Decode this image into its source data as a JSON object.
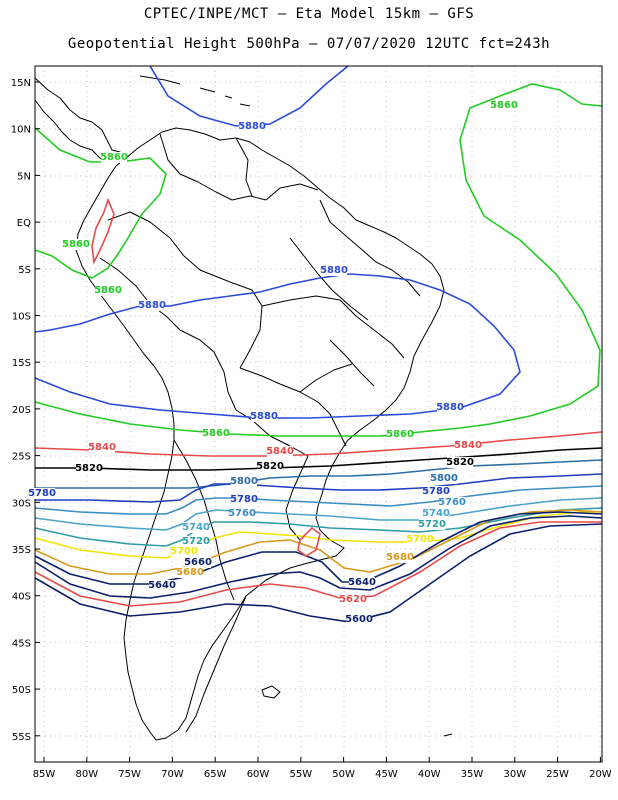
{
  "header": {
    "line1": "CPTEC/INPE/MCT –  Eta Model 15km – GFS",
    "line2": "Geopotential Height 500hPa – 07/07/2020 12UTC fct=243h"
  },
  "axes": {
    "lat_ticks": [
      "15N",
      "10N",
      "5N",
      "EQ",
      "5S",
      "10S",
      "15S",
      "20S",
      "25S",
      "30S",
      "35S",
      "40S",
      "45S",
      "50S",
      "55S"
    ],
    "lon_ticks": [
      "85W",
      "80W",
      "75W",
      "70W",
      "65W",
      "60W",
      "55W",
      "50W",
      "45W",
      "40W",
      "35W",
      "30W",
      "25W",
      "20W"
    ]
  },
  "contours": {
    "colors": {
      "5880": "#2a4bd7",
      "5860": "#22cc22",
      "5840": "#e84a4a",
      "5820": "#000000",
      "5800": "#2b6fa6",
      "5780": "#1f3cbd",
      "5760": "#3a8cc4",
      "5740": "#4aa3c9",
      "5720": "#2e9ca4",
      "5700": "#f2e400",
      "5680": "#d69a1e",
      "5660": "#0a1f6b",
      "5640": "#0a1f6b",
      "5620": "#e84a4a",
      "5600": "#0a1f6b"
    },
    "labels": [
      {
        "text": "5880",
        "level": "5880"
      },
      {
        "text": "5860",
        "level": "5860"
      },
      {
        "text": "5860",
        "level": "5860"
      },
      {
        "text": "5860",
        "level": "5860"
      },
      {
        "text": "5880",
        "level": "5880"
      },
      {
        "text": "5860",
        "level": "5860"
      },
      {
        "text": "5880",
        "level": "5880"
      },
      {
        "text": "5880",
        "level": "5880"
      },
      {
        "text": "5880",
        "level": "5880"
      },
      {
        "text": "5860",
        "level": "5860"
      },
      {
        "text": "5860",
        "level": "5860"
      },
      {
        "text": "5840",
        "level": "5840"
      },
      {
        "text": "5840",
        "level": "5840"
      },
      {
        "text": "5840",
        "level": "5840"
      },
      {
        "text": "5820",
        "level": "5820"
      },
      {
        "text": "5820",
        "level": "5820"
      },
      {
        "text": "5820",
        "level": "5820"
      },
      {
        "text": "5800",
        "level": "5800"
      },
      {
        "text": "5800",
        "level": "5800"
      },
      {
        "text": "5780",
        "level": "5780"
      },
      {
        "text": "5780",
        "level": "5780"
      },
      {
        "text": "5780",
        "level": "5780"
      },
      {
        "text": "5760",
        "level": "5760"
      },
      {
        "text": "5760",
        "level": "5760"
      },
      {
        "text": "5740",
        "level": "5740"
      },
      {
        "text": "5740",
        "level": "5740"
      },
      {
        "text": "5720",
        "level": "5720"
      },
      {
        "text": "5720",
        "level": "5720"
      },
      {
        "text": "5700",
        "level": "5700"
      },
      {
        "text": "5700",
        "level": "5700"
      },
      {
        "text": "5680",
        "level": "5680"
      },
      {
        "text": "5680",
        "level": "5680"
      },
      {
        "text": "5660",
        "level": "5660"
      },
      {
        "text": "5640",
        "level": "5640"
      },
      {
        "text": "5640",
        "level": "5640"
      },
      {
        "text": "5620",
        "level": "5620"
      },
      {
        "text": "5600",
        "level": "5600"
      }
    ]
  }
}
